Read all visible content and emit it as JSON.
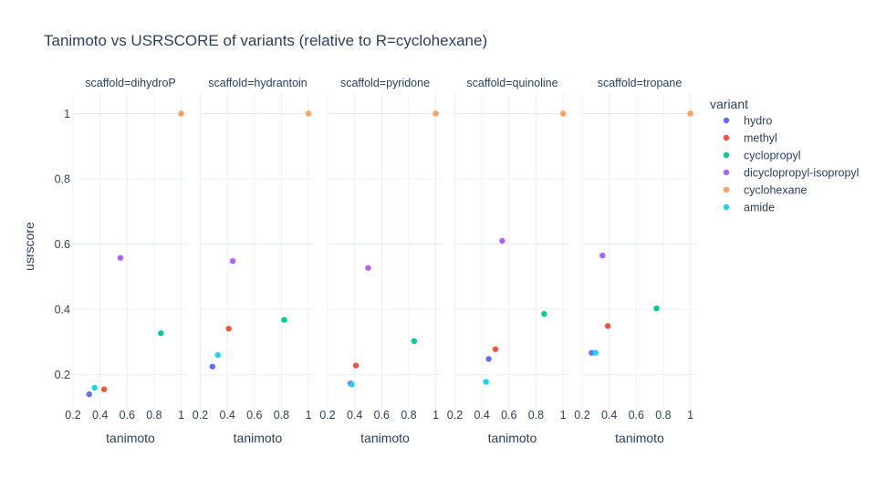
{
  "chart_data": {
    "type": "scatter",
    "title": "Tanimoto vs USRSCORE of variants (relative to R=cyclohexane)",
    "xlabel": "tanimoto",
    "ylabel": "usrscore",
    "xlim": [
      0.2,
      1.05
    ],
    "ylim": [
      0.09,
      1.06
    ],
    "xticks": [
      0.2,
      0.4,
      0.6,
      0.8,
      1
    ],
    "xtick_labels": [
      "0.2",
      "0.4",
      "0.6",
      "0.8",
      "1"
    ],
    "yticks": [
      0.2,
      0.4,
      0.6,
      0.8,
      1
    ],
    "ytick_labels": [
      "0.2",
      "0.4",
      "0.6",
      "0.8",
      "1"
    ],
    "grid": true,
    "legend": {
      "title": "variant",
      "position": "right",
      "entries": [
        {
          "name": "hydro",
          "color": "#636efa"
        },
        {
          "name": "methyl",
          "color": "#EF553B"
        },
        {
          "name": "cyclopropyl",
          "color": "#00cc96"
        },
        {
          "name": "dicyclopropyl-isopropyl",
          "color": "#ab63fa"
        },
        {
          "name": "cyclohexane",
          "color": "#FFA15A"
        },
        {
          "name": "amide",
          "color": "#19d3f3"
        }
      ]
    },
    "facets": [
      {
        "label": "scaffold=dihydroP",
        "points": [
          {
            "variant": "hydro",
            "x": 0.32,
            "y": 0.14
          },
          {
            "variant": "methyl",
            "x": 0.43,
            "y": 0.155
          },
          {
            "variant": "cyclopropyl",
            "x": 0.85,
            "y": 0.327
          },
          {
            "variant": "dicyclopropyl-isopropyl",
            "x": 0.55,
            "y": 0.558
          },
          {
            "variant": "cyclohexane",
            "x": 1.0,
            "y": 1.0
          },
          {
            "variant": "amide",
            "x": 0.36,
            "y": 0.16
          }
        ]
      },
      {
        "label": "scaffold=hydrantoin",
        "points": [
          {
            "variant": "hydro",
            "x": 0.29,
            "y": 0.225
          },
          {
            "variant": "methyl",
            "x": 0.41,
            "y": 0.341
          },
          {
            "variant": "cyclopropyl",
            "x": 0.82,
            "y": 0.368
          },
          {
            "variant": "dicyclopropyl-isopropyl",
            "x": 0.44,
            "y": 0.548
          },
          {
            "variant": "cyclohexane",
            "x": 1.0,
            "y": 1.0
          },
          {
            "variant": "amide",
            "x": 0.33,
            "y": 0.26
          }
        ]
      },
      {
        "label": "scaffold=pyridone",
        "points": [
          {
            "variant": "hydro",
            "x": 0.37,
            "y": 0.173
          },
          {
            "variant": "methyl",
            "x": 0.41,
            "y": 0.228
          },
          {
            "variant": "cyclopropyl",
            "x": 0.84,
            "y": 0.303
          },
          {
            "variant": "dicyclopropyl-isopropyl",
            "x": 0.5,
            "y": 0.527
          },
          {
            "variant": "cyclohexane",
            "x": 1.0,
            "y": 1.0
          },
          {
            "variant": "amide",
            "x": 0.38,
            "y": 0.17
          }
        ]
      },
      {
        "label": "scaffold=quinoline",
        "points": [
          {
            "variant": "hydro",
            "x": 0.45,
            "y": 0.248
          },
          {
            "variant": "methyl",
            "x": 0.5,
            "y": 0.278
          },
          {
            "variant": "cyclopropyl",
            "x": 0.86,
            "y": 0.386
          },
          {
            "variant": "dicyclopropyl-isopropyl",
            "x": 0.55,
            "y": 0.61
          },
          {
            "variant": "cyclohexane",
            "x": 1.0,
            "y": 1.0
          },
          {
            "variant": "amide",
            "x": 0.43,
            "y": 0.178
          }
        ]
      },
      {
        "label": "scaffold=tropane",
        "points": [
          {
            "variant": "hydro",
            "x": 0.27,
            "y": 0.267
          },
          {
            "variant": "methyl",
            "x": 0.39,
            "y": 0.349
          },
          {
            "variant": "cyclopropyl",
            "x": 0.75,
            "y": 0.403
          },
          {
            "variant": "dicyclopropyl-isopropyl",
            "x": 0.35,
            "y": 0.565
          },
          {
            "variant": "cyclohexane",
            "x": 1.0,
            "y": 1.0
          },
          {
            "variant": "amide",
            "x": 0.3,
            "y": 0.267
          }
        ]
      }
    ]
  }
}
